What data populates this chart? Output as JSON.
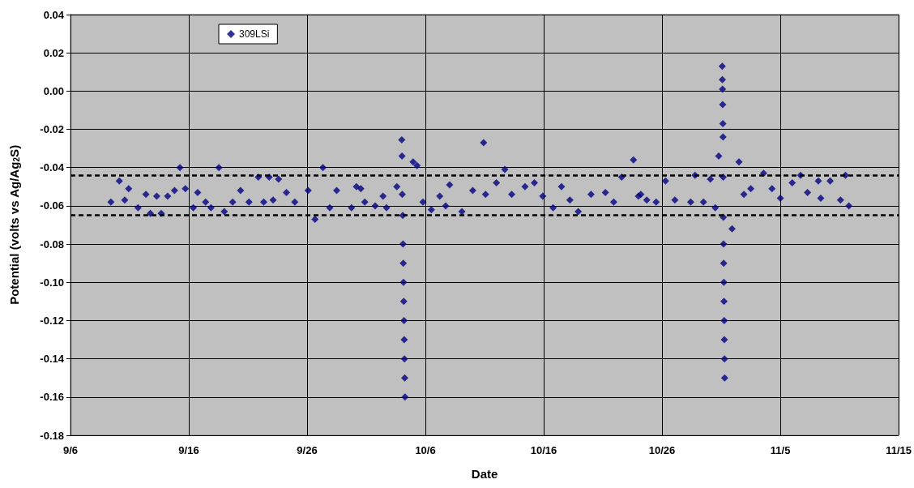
{
  "chart_data": {
    "type": "scatter",
    "xlabel": "Date",
    "ylabel": "Potential (volts vs Ag/Ag$_{2}$S)",
    "xlim": [
      "--09-06",
      "--11-15"
    ],
    "xticks": [
      {
        "value": "--09-06",
        "label": "9/6"
      },
      {
        "value": "--09-16",
        "label": "9/16"
      },
      {
        "value": "--09-26",
        "label": "9/26"
      },
      {
        "value": "--10-06",
        "label": "10/6"
      },
      {
        "value": "--10-16",
        "label": "10/16"
      },
      {
        "value": "--10-26",
        "label": "10/26"
      },
      {
        "value": "--11-05",
        "label": "11/5"
      },
      {
        "value": "--11-15",
        "label": "11/15"
      }
    ],
    "ylim": [
      -0.18,
      0.04
    ],
    "yticks": [
      {
        "value": -0.18,
        "label": "-0.18"
      },
      {
        "value": -0.16,
        "label": "-0.16"
      },
      {
        "value": -0.14,
        "label": "-0.14"
      },
      {
        "value": -0.12,
        "label": "-0.12"
      },
      {
        "value": -0.1,
        "label": "-0.10"
      },
      {
        "value": -0.08,
        "label": "-0.08"
      },
      {
        "value": -0.06,
        "label": "-0.06"
      },
      {
        "value": -0.04,
        "label": "-0.04"
      },
      {
        "value": -0.02,
        "label": "-0.02"
      },
      {
        "value": 0,
        "label": "0.00"
      },
      {
        "value": 0.02,
        "label": "0.02"
      },
      {
        "value": 0.04,
        "label": "0.04"
      }
    ],
    "grid": true,
    "legend": "top left",
    "marker": "diamond",
    "ref_lines": [
      {
        "axis": "y",
        "value": -0.044,
        "color": "#000000",
        "line_style": "dashed"
      },
      {
        "axis": "y",
        "value": -0.065,
        "color": "#000000",
        "line_style": "dashed"
      }
    ],
    "series": [
      {
        "name": "309LSi",
        "color": "#000080",
        "x": [
          "--09-09T10:00",
          "--09-10T03:00",
          "--09-10T14:00",
          "--09-10T22:00",
          "--09-11T17:00",
          "--09-12T09:00",
          "--09-12T18:00",
          "--09-13T07:00",
          "--09-13T16:00",
          "--09-14T05:00",
          "--09-14T19:00",
          "--09-15T06:00",
          "--09-15T17:00",
          "--09-16T09:00",
          "--09-16T18:00",
          "--09-17T10:00",
          "--09-17T21:00",
          "--09-18T13:00",
          "--09-19T00:00",
          "--09-19T17:00",
          "--09-20T09:00",
          "--09-21T02:00",
          "--09-21T21:00",
          "--09-22T08:00",
          "--09-22T19:00",
          "--09-23T03:00",
          "--09-23T14:00",
          "--09-24T06:00",
          "--09-24T23:00",
          "--09-26T02:00",
          "--09-26T16:00",
          "--09-27T08:00",
          "--09-27T22:00",
          "--09-28T12:00",
          "--09-29T18:00",
          "--09-30T04:00",
          "--09-30T13:00",
          "--09-30T21:00",
          "--10-01T18:00",
          "--10-02T10:00",
          "--10-02T17:00",
          "--10-03T14:00",
          "--10-04T00:00",
          "--10-04T00:30",
          "--10-04T01:00",
          "--10-04T02:00",
          "--10-04T02:30",
          "--10-04T03:00",
          "--10-04T03:30",
          "--10-04T04:00",
          "--10-04T04:30",
          "--10-04T05:00",
          "--10-04T05:30",
          "--10-04T06:00",
          "--10-04T06:30",
          "--10-04T23:00",
          "--10-05T07:00",
          "--10-05T19:00",
          "--10-06T12:00",
          "--10-07T05:00",
          "--10-07T17:00",
          "--10-08T01:00",
          "--10-09T02:00",
          "--10-10T00:00",
          "--10-10T22:00",
          "--10-11T02:00",
          "--10-12T00:00",
          "--10-12T17:00",
          "--10-13T07:00",
          "--10-14T10:00",
          "--10-15T05:00",
          "--10-15T22:00",
          "--10-16T19:00",
          "--10-17T12:00",
          "--10-18T05:00",
          "--10-18T22:00",
          "--10-20T00:00",
          "--10-21T05:00",
          "--10-21T22:00",
          "--10-22T14:00",
          "--10-23T14:00",
          "--10-24T00:00",
          "--10-24T05:00",
          "--10-24T17:00",
          "--10-25T12:00",
          "--10-26T07:00",
          "--10-27T02:00",
          "--10-28T10:00",
          "--10-28T19:00",
          "--10-29T12:00",
          "--10-30T02:00",
          "--10-30T12:00",
          "--10-30T19:00",
          "--10-31T02:00",
          "--10-31T02:20",
          "--10-31T02:40",
          "--10-31T03:00",
          "--10-31T03:20",
          "--10-31T03:40",
          "--10-31T04:00",
          "--10-31T04:20",
          "--10-31T04:40",
          "--10-31T05:00",
          "--10-31T05:20",
          "--10-31T05:40",
          "--10-31T06:00",
          "--10-31T06:20",
          "--10-31T06:40",
          "--10-31T07:00",
          "--10-31T22:00",
          "--11-01T12:00",
          "--11-01T22:00",
          "--11-02T12:00",
          "--11-03T14:00",
          "--11-04T07:00",
          "--11-05T00:00",
          "--11-06T00:00",
          "--11-06T17:00",
          "--11-07T07:00",
          "--11-08T05:00",
          "--11-08T10:00",
          "--11-09T05:00",
          "--11-10T02:00",
          "--11-10T12:00",
          "--11-10T19:00"
        ],
        "values": [
          -0.058,
          -0.047,
          -0.057,
          -0.051,
          -0.061,
          -0.054,
          -0.064,
          -0.055,
          -0.064,
          -0.055,
          -0.052,
          -0.04,
          -0.051,
          -0.061,
          -0.053,
          -0.058,
          -0.061,
          -0.04,
          -0.063,
          -0.058,
          -0.052,
          -0.058,
          -0.045,
          -0.058,
          -0.045,
          -0.057,
          -0.046,
          -0.053,
          -0.058,
          -0.052,
          -0.067,
          -0.04,
          -0.061,
          -0.052,
          -0.061,
          -0.05,
          -0.051,
          -0.058,
          -0.06,
          -0.055,
          -0.061,
          -0.05,
          -0.0255,
          -0.034,
          -0.054,
          -0.065,
          -0.08,
          -0.09,
          -0.1,
          -0.11,
          -0.12,
          -0.13,
          -0.14,
          -0.15,
          -0.16,
          -0.037,
          -0.039,
          -0.058,
          -0.062,
          -0.055,
          -0.06,
          -0.049,
          -0.063,
          -0.052,
          -0.027,
          -0.054,
          -0.048,
          -0.041,
          -0.054,
          -0.05,
          -0.048,
          -0.055,
          -0.061,
          -0.05,
          -0.057,
          -0.063,
          -0.054,
          -0.053,
          -0.058,
          -0.045,
          -0.036,
          -0.055,
          -0.054,
          -0.057,
          -0.058,
          -0.047,
          -0.057,
          -0.058,
          -0.044,
          -0.058,
          -0.046,
          -0.061,
          -0.034,
          0.013,
          0.006,
          0.001,
          -0.007,
          -0.017,
          -0.024,
          -0.045,
          -0.066,
          -0.08,
          -0.09,
          -0.1,
          -0.11,
          -0.12,
          -0.13,
          -0.14,
          -0.15,
          -0.072,
          -0.037,
          -0.054,
          -0.051,
          -0.043,
          -0.051,
          -0.056,
          -0.048,
          -0.044,
          -0.053,
          -0.047,
          -0.056,
          -0.047,
          -0.057,
          -0.044,
          -0.06
        ]
      }
    ]
  }
}
